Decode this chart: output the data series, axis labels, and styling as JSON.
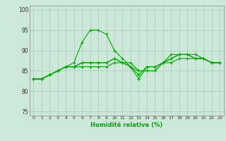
{
  "background_color": "#cce8d8",
  "grid_color": "#aaccbb",
  "line_color": "#00aa00",
  "xlabel": "Humidité relative (%)",
  "ylim": [
    74,
    101
  ],
  "xlim": [
    -0.5,
    23.5
  ],
  "yticks": [
    75,
    80,
    85,
    90,
    95,
    100
  ],
  "xticks": [
    0,
    1,
    2,
    3,
    4,
    5,
    6,
    7,
    8,
    9,
    10,
    11,
    12,
    13,
    14,
    15,
    16,
    17,
    18,
    19,
    20,
    21,
    22,
    23
  ],
  "lines": [
    [
      83,
      83,
      84,
      85,
      86,
      87,
      92,
      95,
      95,
      94,
      90,
      88,
      86,
      85,
      85,
      85,
      87,
      89,
      89,
      89,
      89,
      88,
      87,
      87
    ],
    [
      83,
      83,
      84,
      85,
      86,
      86,
      87,
      87,
      87,
      87,
      88,
      87,
      86,
      84,
      86,
      86,
      87,
      88,
      89,
      89,
      88,
      88,
      87,
      87
    ],
    [
      83,
      83,
      84,
      85,
      86,
      86,
      87,
      87,
      87,
      87,
      88,
      87,
      86,
      83,
      86,
      86,
      87,
      88,
      89,
      89,
      88,
      88,
      87,
      87
    ],
    [
      83,
      83,
      84,
      85,
      86,
      86,
      86,
      86,
      86,
      86,
      87,
      87,
      87,
      85,
      85,
      85,
      87,
      87,
      88,
      88,
      88,
      88,
      87,
      87
    ]
  ]
}
